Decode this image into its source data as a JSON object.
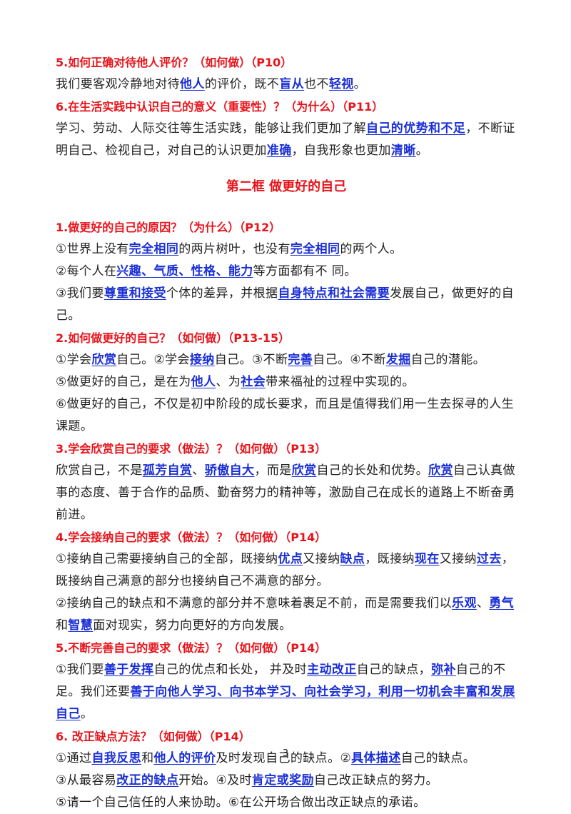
{
  "blocks": [
    {
      "kind": "heading",
      "text": "5.如何正确对待他人评价？（如何做）（P10）"
    },
    {
      "kind": "para",
      "runs": [
        {
          "text": "我们要客观冷静地对待"
        },
        {
          "text": "他人",
          "highlight": true
        },
        {
          "text": "的评价，既不"
        },
        {
          "text": "盲从",
          "highlight": true
        },
        {
          "text": "也不"
        },
        {
          "text": "轻视",
          "highlight": true
        },
        {
          "text": "。"
        }
      ]
    },
    {
      "kind": "heading",
      "text": "6.在生活实践中认识自己的意义（重要性）？（为什么）（P11）"
    },
    {
      "kind": "para",
      "runs": [
        {
          "text": "学习、劳动、人际交往等生活实践，能够让我们更加了解"
        },
        {
          "text": "自己的优势和不足",
          "highlight": true
        },
        {
          "text": "，不断证明自己、检视自己，对自己的认识更加"
        },
        {
          "text": "准确",
          "highlight": true
        },
        {
          "text": "，自我形象也更加"
        },
        {
          "text": "清晰",
          "highlight": true
        },
        {
          "text": "。"
        }
      ]
    },
    {
      "kind": "section",
      "text": "第二框 做更好的自己"
    },
    {
      "kind": "heading",
      "text": "1.做更好的自己的原因？（为什么）（P12）"
    },
    {
      "kind": "para",
      "runs": [
        {
          "text": "①世界上没有"
        },
        {
          "text": "完全相同",
          "highlight": true
        },
        {
          "text": "的两片树叶，也没有"
        },
        {
          "text": "完全相同",
          "highlight": true
        },
        {
          "text": "的两个人。"
        }
      ]
    },
    {
      "kind": "para",
      "runs": [
        {
          "text": "②每个人在"
        },
        {
          "text": "兴趣、气质、性格、能力",
          "highlight": true
        },
        {
          "text": "等方面都有不 同。"
        }
      ]
    },
    {
      "kind": "para",
      "runs": [
        {
          "text": "③我们要"
        },
        {
          "text": "尊重和接受",
          "highlight": true
        },
        {
          "text": "个体的差异，并根据"
        },
        {
          "text": "自身特点和社会需要",
          "highlight": true
        },
        {
          "text": "发展自己，做更好的自己。"
        }
      ]
    },
    {
      "kind": "heading",
      "text": "2.如何做更好的自己？（如何做）（P13-15）"
    },
    {
      "kind": "para",
      "runs": [
        {
          "text": "①学会"
        },
        {
          "text": "欣赏",
          "highlight": true
        },
        {
          "text": "自己。②学会"
        },
        {
          "text": "接纳",
          "highlight": true
        },
        {
          "text": "自己。③不断"
        },
        {
          "text": "完善",
          "highlight": true
        },
        {
          "text": "自己。④不断"
        },
        {
          "text": "发掘",
          "highlight": true
        },
        {
          "text": "自己的潜能。"
        }
      ]
    },
    {
      "kind": "para",
      "runs": [
        {
          "text": "⑤做更好的自己，是在为"
        },
        {
          "text": "他人",
          "highlight": true
        },
        {
          "text": "、为"
        },
        {
          "text": "社会",
          "highlight": true
        },
        {
          "text": "带来福祉的过程中实现的。"
        }
      ]
    },
    {
      "kind": "para",
      "runs": [
        {
          "text": "⑥做更好的自己，不仅是初中阶段的成长要求，而且是值得我们用一生去探寻的人生课题。"
        }
      ]
    },
    {
      "kind": "heading",
      "text": "3.学会欣赏自己的要求（做法）？（如何做）（P13）"
    },
    {
      "kind": "para",
      "runs": [
        {
          "text": "欣赏自己，不是"
        },
        {
          "text": "孤芳自赏",
          "highlight": true
        },
        {
          "text": "、"
        },
        {
          "text": "骄傲自大",
          "highlight": true
        },
        {
          "text": "，而是"
        },
        {
          "text": "欣赏",
          "highlight": true
        },
        {
          "text": "自己的长处和优势。"
        },
        {
          "text": "欣赏",
          "highlight": true
        },
        {
          "text": "自己认真做事的态度、善于合作的品质、勤奋努力的精神等，激励自己在成长的道路上不断奋勇前进。"
        }
      ]
    },
    {
      "kind": "heading",
      "text": "4.学会接纳自己的要求（做法）？（如何做）（P14）"
    },
    {
      "kind": "para",
      "runs": [
        {
          "text": "①接纳自己需要接纳自己的全部，既接纳"
        },
        {
          "text": "优点",
          "highlight": true
        },
        {
          "text": "又接纳"
        },
        {
          "text": "缺点",
          "highlight": true
        },
        {
          "text": "，既接纳"
        },
        {
          "text": "现在",
          "highlight": true
        },
        {
          "text": "又接纳"
        },
        {
          "text": "过去",
          "highlight": true
        },
        {
          "text": "，既接纳自己满意的部分也接纳自己不满意的部分。"
        }
      ]
    },
    {
      "kind": "para",
      "runs": [
        {
          "text": "②接纳自己的缺点和不满意的部分并不意味着裹足不前，而是需要我们以"
        },
        {
          "text": "乐观",
          "highlight": true
        },
        {
          "text": "、"
        },
        {
          "text": "勇气",
          "highlight": true
        },
        {
          "text": "和"
        },
        {
          "text": "智慧",
          "highlight": true
        },
        {
          "text": "面对现实，努力向更好的方向发展。"
        }
      ]
    },
    {
      "kind": "heading",
      "text": "5.不断完善自己的要求（做法）？（如何做）（P14）"
    },
    {
      "kind": "para",
      "runs": [
        {
          "text": "①我们要"
        },
        {
          "text": "善于发挥",
          "highlight": true
        },
        {
          "text": "自己的优点和长处， 并及时"
        },
        {
          "text": "主动改正",
          "highlight": true
        },
        {
          "text": "自己的缺点，"
        },
        {
          "text": "弥补",
          "highlight": true
        },
        {
          "text": "自己的不足。我们还要"
        },
        {
          "text": "善于向他人学习、向书本学习、向社会学习，利用一切机会丰富和发展自己",
          "highlight": true
        },
        {
          "text": "。"
        }
      ]
    },
    {
      "kind": "heading",
      "text": "6. 改正缺点方法？（如何做）（P14）"
    },
    {
      "kind": "para",
      "runs": [
        {
          "text": "①通过"
        },
        {
          "text": "自我反思",
          "highlight": true
        },
        {
          "text": "和"
        },
        {
          "text": "他人的评价",
          "highlight": true
        },
        {
          "text": "及时发现自己的缺点。②"
        },
        {
          "text": "具体描述",
          "highlight": true
        },
        {
          "text": "自己的缺点。"
        }
      ]
    },
    {
      "kind": "para",
      "runs": [
        {
          "text": "③从最容易"
        },
        {
          "text": "改正的缺点",
          "highlight": true
        },
        {
          "text": "开始。④及时"
        },
        {
          "text": "肯定或奖励",
          "highlight": true
        },
        {
          "text": "自己改正缺点的努力。"
        }
      ]
    },
    {
      "kind": "para",
      "runs": [
        {
          "text": "⑤请一个自己信任的人来协助。⑥在公开场合做出改正缺点的承诺。"
        }
      ]
    }
  ],
  "page_number": "3"
}
